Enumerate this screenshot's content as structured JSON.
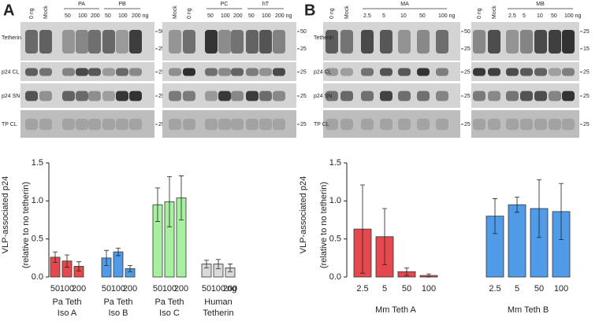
{
  "blots": [
    {
      "label": "A",
      "rows": [
        "Tetherin",
        "p24 CL",
        "p24 SN",
        "TP CL"
      ],
      "left": {
        "lanes": [
          "0 ng",
          "Mock"
        ],
        "groups": [
          {
            "name": "PA",
            "lanes": [
              "50",
              "100",
              "200"
            ]
          },
          {
            "name": "PB",
            "lanes": [
              "50",
              "100",
              "200 ng"
            ]
          }
        ],
        "markers": [
          "50",
          "25",
          "25",
          "25",
          "25"
        ]
      },
      "right": {
        "lanes": [
          "Mock",
          "0 ng"
        ],
        "groups": [
          {
            "name": "PC",
            "lanes": [
              "50",
              "100",
              "200"
            ]
          },
          {
            "name": "hT",
            "lanes": [
              "50",
              "100",
              "200 ng"
            ]
          }
        ],
        "markers": [
          "50",
          "25",
          "25",
          "25",
          "25"
        ]
      }
    },
    {
      "label": "B",
      "rows": [
        "Tetherin",
        "p24 CL",
        "p24 SN",
        "TP CL"
      ],
      "left": {
        "lanes": [
          "0 ng",
          "Mock"
        ],
        "groups": [
          {
            "name": "MA",
            "lanes": [
              "2.5",
              "5",
              "10",
              "50",
              "100 ng"
            ]
          }
        ],
        "markers": [
          "50",
          "25",
          "25",
          "25",
          "25"
        ]
      },
      "right": {
        "lanes": [
          "0 ng",
          "Mock"
        ],
        "groups": [
          {
            "name": "MB",
            "lanes": [
              "2.5",
              "5",
              "10",
              "50",
              "100 ng"
            ]
          }
        ],
        "markers": [
          "25",
          "15",
          "25",
          "25",
          "25"
        ]
      }
    }
  ],
  "chart_data": [
    {
      "type": "bar",
      "ylabel": [
        "VLP-associated p24",
        "(relative to no tetherin)"
      ],
      "unit": "ng",
      "ylim": [
        0,
        1.5
      ],
      "yticks": [
        {
          "value": 0,
          "label": "0.0"
        },
        0.5,
        {
          "value": 1,
          "label": "1.0"
        },
        1.5
      ],
      "groups": [
        {
          "name": [
            "Pa Teth",
            "Iso A"
          ],
          "color": "#e5484d",
          "categories": [
            "50",
            "100",
            "200"
          ],
          "values": [
            0.26,
            0.21,
            0.14
          ],
          "errors": [
            0.07,
            0.08,
            0.06
          ]
        },
        {
          "name": [
            "Pa Teth",
            "Iso B"
          ],
          "color": "#4f9be8",
          "categories": [
            "50",
            "100",
            "200"
          ],
          "values": [
            0.25,
            0.33,
            0.11
          ],
          "errors": [
            0.1,
            0.05,
            0.04
          ]
        },
        {
          "name": [
            "Pa Teth",
            "Iso C"
          ],
          "color": "#a6f0a0",
          "categories": [
            "50",
            "100",
            "200"
          ],
          "values": [
            0.95,
            0.99,
            1.04
          ],
          "errors": [
            0.22,
            0.33,
            0.29
          ]
        },
        {
          "name": [
            "Human",
            "Tetherin"
          ],
          "color": "#d9d9d9",
          "categories": [
            "50",
            "100",
            "200"
          ],
          "values": [
            0.17,
            0.17,
            0.12
          ],
          "errors": [
            0.05,
            0.06,
            0.05
          ]
        }
      ]
    },
    {
      "type": "bar",
      "ylabel": [
        "VLP-associated p24",
        "(relative to no tetherin)"
      ],
      "ylim": [
        0,
        1.5
      ],
      "yticks": [
        {
          "value": 0,
          "label": "0.0"
        },
        0.5,
        {
          "value": 1,
          "label": "1.0"
        },
        1.5
      ],
      "groups": [
        {
          "name": [
            "Mm Teth A"
          ],
          "color": "#e5484d",
          "categories": [
            "2.5",
            "5",
            "50",
            "100"
          ],
          "values": [
            0.63,
            0.53,
            0.07,
            0.02
          ],
          "errors": [
            0.58,
            0.37,
            0.05,
            0.02
          ]
        },
        {
          "name": [
            "Mm Teth B"
          ],
          "color": "#4f9be8",
          "categories": [
            "2.5",
            "5",
            "50",
            "100"
          ],
          "values": [
            0.8,
            0.95,
            0.9,
            0.86
          ],
          "errors": [
            0.23,
            0.1,
            0.38,
            0.37
          ]
        }
      ]
    }
  ]
}
